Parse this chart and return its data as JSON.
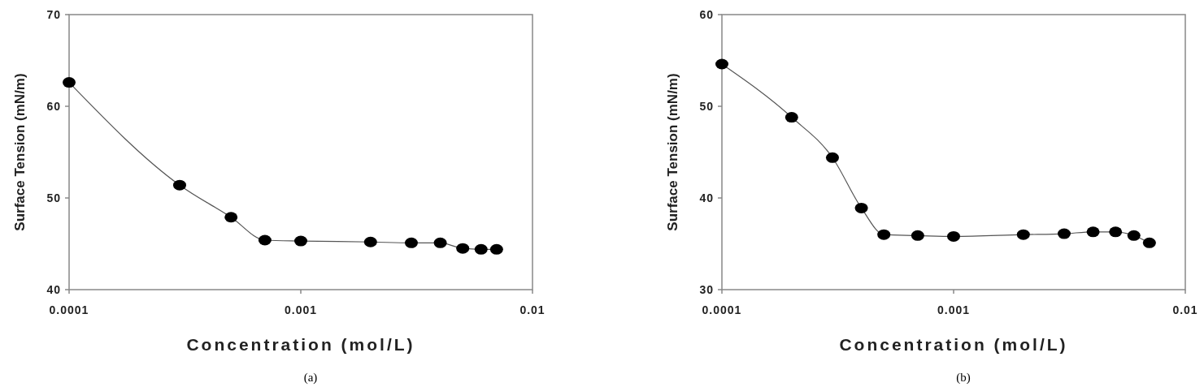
{
  "chart_data": [
    {
      "type": "line",
      "xlabel": "Concentration (mol/L)",
      "ylabel": "Surface Tension (mN/m)",
      "log": "x",
      "marker": "circle",
      "line_style": "solid",
      "grid": false,
      "xlim": [
        0.0001,
        0.01
      ],
      "xticks": [
        0.0001,
        0.001,
        0.01
      ],
      "ylim": [
        40,
        70
      ],
      "yticks": [
        40,
        50,
        60,
        70
      ],
      "annotations": [
        "(a)"
      ],
      "series": [
        {
          "color": "#000000",
          "x": [
            0.0001,
            0.0003,
            0.0005,
            0.0007,
            0.001,
            0.002,
            0.003,
            0.004,
            0.005,
            0.006,
            0.007
          ],
          "values": [
            62.6,
            51.4,
            47.9,
            45.4,
            45.3,
            45.2,
            45.1,
            45.1,
            44.5,
            44.4,
            44.4
          ]
        }
      ]
    },
    {
      "type": "line",
      "xlabel": "Concentration (mol/L)",
      "ylabel": "Surface Tension (mN/m)",
      "log": "x",
      "marker": "circle",
      "line_style": "solid",
      "grid": false,
      "xlim": [
        0.0001,
        0.01
      ],
      "xticks": [
        0.0001,
        0.001,
        0.01
      ],
      "ylim": [
        30,
        60
      ],
      "yticks": [
        30,
        40,
        50,
        60
      ],
      "annotations": [
        "(b)"
      ],
      "series": [
        {
          "color": "#000000",
          "x": [
            0.0001,
            0.0002,
            0.0003,
            0.0004,
            0.0005,
            0.0007,
            0.001,
            0.002,
            0.003,
            0.004,
            0.005,
            0.006,
            0.007
          ],
          "values": [
            54.6,
            48.8,
            44.4,
            38.9,
            36.0,
            35.9,
            35.8,
            36.0,
            36.1,
            36.3,
            36.3,
            35.9,
            35.1
          ]
        }
      ]
    }
  ]
}
